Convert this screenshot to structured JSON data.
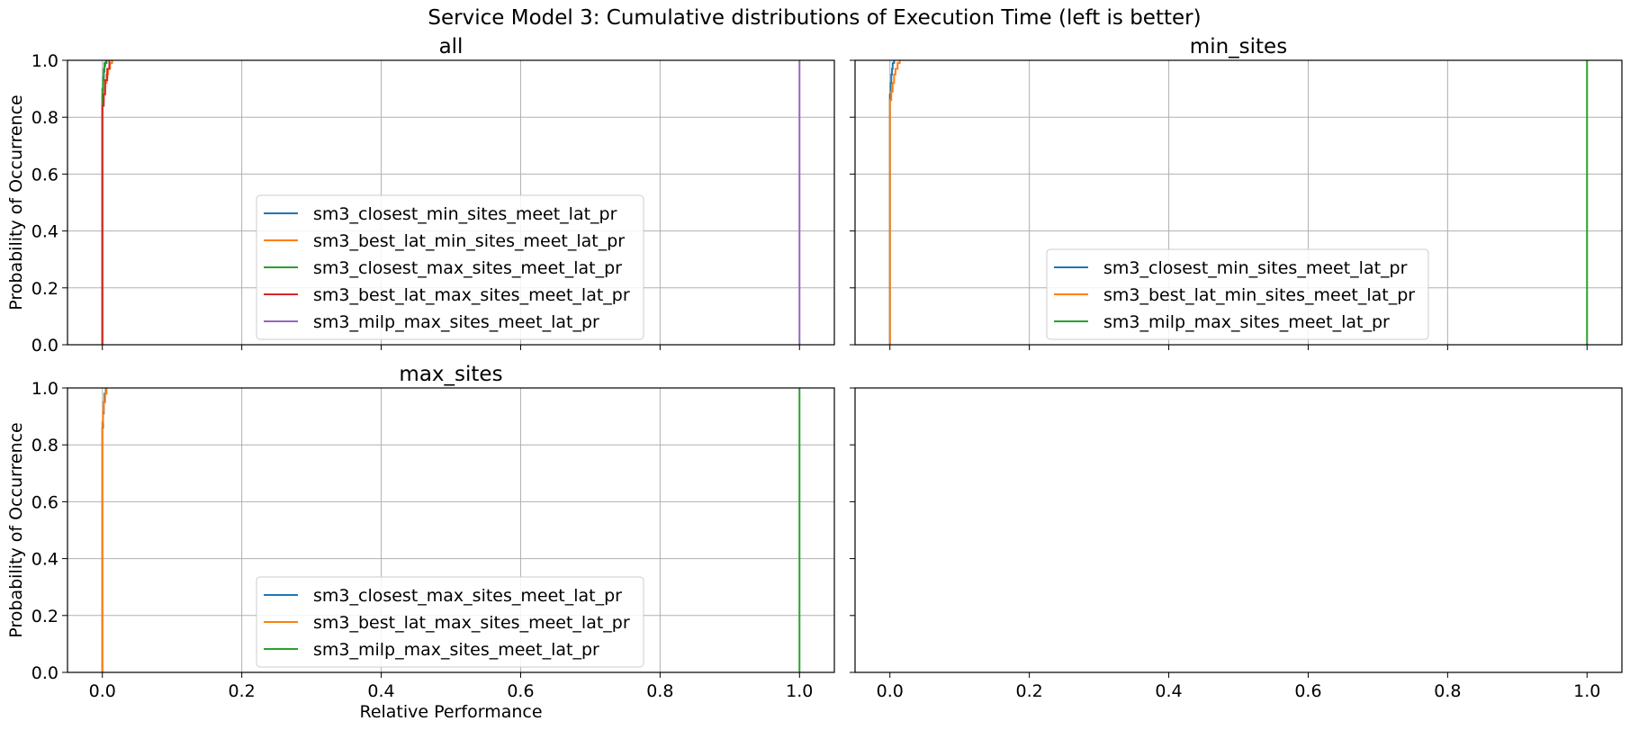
{
  "figure": {
    "title": "Service Model 3: Cumulative distributions of Execution Time (left is better)"
  },
  "chart_data": [
    {
      "type": "line",
      "panel": "top-left",
      "title": "all",
      "xlabel": "",
      "ylabel": "Probability of Occurrence",
      "xlim": [
        -0.05,
        1.05
      ],
      "ylim": [
        0,
        1.0
      ],
      "xticks": [
        "0.0",
        "0.2",
        "0.4",
        "0.6",
        "0.8",
        "1.0"
      ],
      "yticks": [
        "0.0",
        "0.2",
        "0.4",
        "0.6",
        "0.8",
        "1.0"
      ],
      "grid": true,
      "legend_position": "lower-center",
      "series": [
        {
          "name": "sm3_closest_min_sites_meet_lat_pr",
          "color": "#1f77b4",
          "x": [
            0.0,
            0.0,
            0.001,
            0.002,
            0.003,
            0.004,
            0.006
          ],
          "y": [
            0.0,
            0.88,
            0.93,
            0.96,
            0.98,
            0.99,
            1.0
          ]
        },
        {
          "name": "sm3_best_lat_min_sites_meet_lat_pr",
          "color": "#ff7f0e",
          "x": [
            0.0,
            0.0,
            0.002,
            0.004,
            0.006,
            0.008,
            0.011,
            0.014
          ],
          "y": [
            0.0,
            0.86,
            0.89,
            0.92,
            0.95,
            0.97,
            0.99,
            1.0
          ]
        },
        {
          "name": "sm3_closest_max_sites_meet_lat_pr",
          "color": "#2ca02c",
          "x": [
            0.0,
            0.0,
            0.001,
            0.002,
            0.003,
            0.005
          ],
          "y": [
            0.0,
            0.9,
            0.94,
            0.97,
            0.99,
            1.0
          ]
        },
        {
          "name": "sm3_best_lat_max_sites_meet_lat_pr",
          "color": "#d62728",
          "x": [
            0.0,
            0.0,
            0.002,
            0.004,
            0.007,
            0.01
          ],
          "y": [
            0.0,
            0.84,
            0.88,
            0.93,
            0.97,
            1.0
          ]
        },
        {
          "name": "sm3_milp_max_sites_meet_lat_pr",
          "color": "#9467bd",
          "x": [
            1.0,
            1.0
          ],
          "y": [
            0.0,
            1.0
          ]
        }
      ]
    },
    {
      "type": "line",
      "panel": "top-right",
      "title": "min_sites",
      "xlabel": "",
      "ylabel": "",
      "xlim": [
        -0.05,
        1.05
      ],
      "ylim": [
        0,
        1.0
      ],
      "xticks": [
        "0.0",
        "0.2",
        "0.4",
        "0.6",
        "0.8",
        "1.0"
      ],
      "yticks": [
        "0.0",
        "0.2",
        "0.4",
        "0.6",
        "0.8",
        "1.0"
      ],
      "grid": true,
      "legend_position": "lower-center",
      "series": [
        {
          "name": "sm3_closest_min_sites_meet_lat_pr",
          "color": "#1f77b4",
          "x": [
            0.0,
            0.0,
            0.001,
            0.002,
            0.003,
            0.004,
            0.006
          ],
          "y": [
            0.0,
            0.88,
            0.92,
            0.95,
            0.97,
            0.99,
            1.0
          ]
        },
        {
          "name": "sm3_best_lat_min_sites_meet_lat_pr",
          "color": "#ff7f0e",
          "x": [
            0.0,
            0.0,
            0.002,
            0.004,
            0.006,
            0.008,
            0.011,
            0.014
          ],
          "y": [
            0.0,
            0.86,
            0.89,
            0.92,
            0.95,
            0.97,
            0.99,
            1.0
          ]
        },
        {
          "name": "sm3_milp_max_sites_meet_lat_pr",
          "color": "#2ca02c",
          "x": [
            1.0,
            1.0
          ],
          "y": [
            0.0,
            1.0
          ]
        }
      ]
    },
    {
      "type": "line",
      "panel": "bottom-left",
      "title": "max_sites",
      "xlabel": "Relative Performance",
      "ylabel": "Probability of Occurrence",
      "xlim": [
        -0.05,
        1.05
      ],
      "ylim": [
        0,
        1.0
      ],
      "xticks": [
        "0.0",
        "0.2",
        "0.4",
        "0.6",
        "0.8",
        "1.0"
      ],
      "yticks": [
        "0.0",
        "0.2",
        "0.4",
        "0.6",
        "0.8",
        "1.0"
      ],
      "grid": true,
      "legend_position": "lower-center",
      "series": [
        {
          "name": "sm3_closest_max_sites_meet_lat_pr",
          "color": "#1f77b4",
          "x": [
            0.0,
            0.0,
            0.001,
            0.002,
            0.003,
            0.005
          ],
          "y": [
            0.0,
            0.86,
            0.91,
            0.95,
            0.98,
            1.0
          ]
        },
        {
          "name": "sm3_best_lat_max_sites_meet_lat_pr",
          "color": "#ff7f0e",
          "x": [
            0.0,
            0.0,
            0.001,
            0.002,
            0.004,
            0.006
          ],
          "y": [
            0.0,
            0.88,
            0.92,
            0.95,
            0.98,
            1.0
          ]
        },
        {
          "name": "sm3_milp_max_sites_meet_lat_pr",
          "color": "#2ca02c",
          "x": [
            1.0,
            1.0
          ],
          "y": [
            0.0,
            1.0
          ]
        }
      ]
    },
    {
      "type": "line",
      "panel": "bottom-right",
      "title": "",
      "xlabel": "",
      "ylabel": "",
      "xlim": [
        -0.05,
        1.05
      ],
      "ylim": [
        0,
        1.0
      ],
      "xticks": [
        "0.0",
        "0.2",
        "0.4",
        "0.6",
        "0.8",
        "1.0"
      ],
      "yticks": [],
      "grid": false,
      "series": []
    }
  ]
}
